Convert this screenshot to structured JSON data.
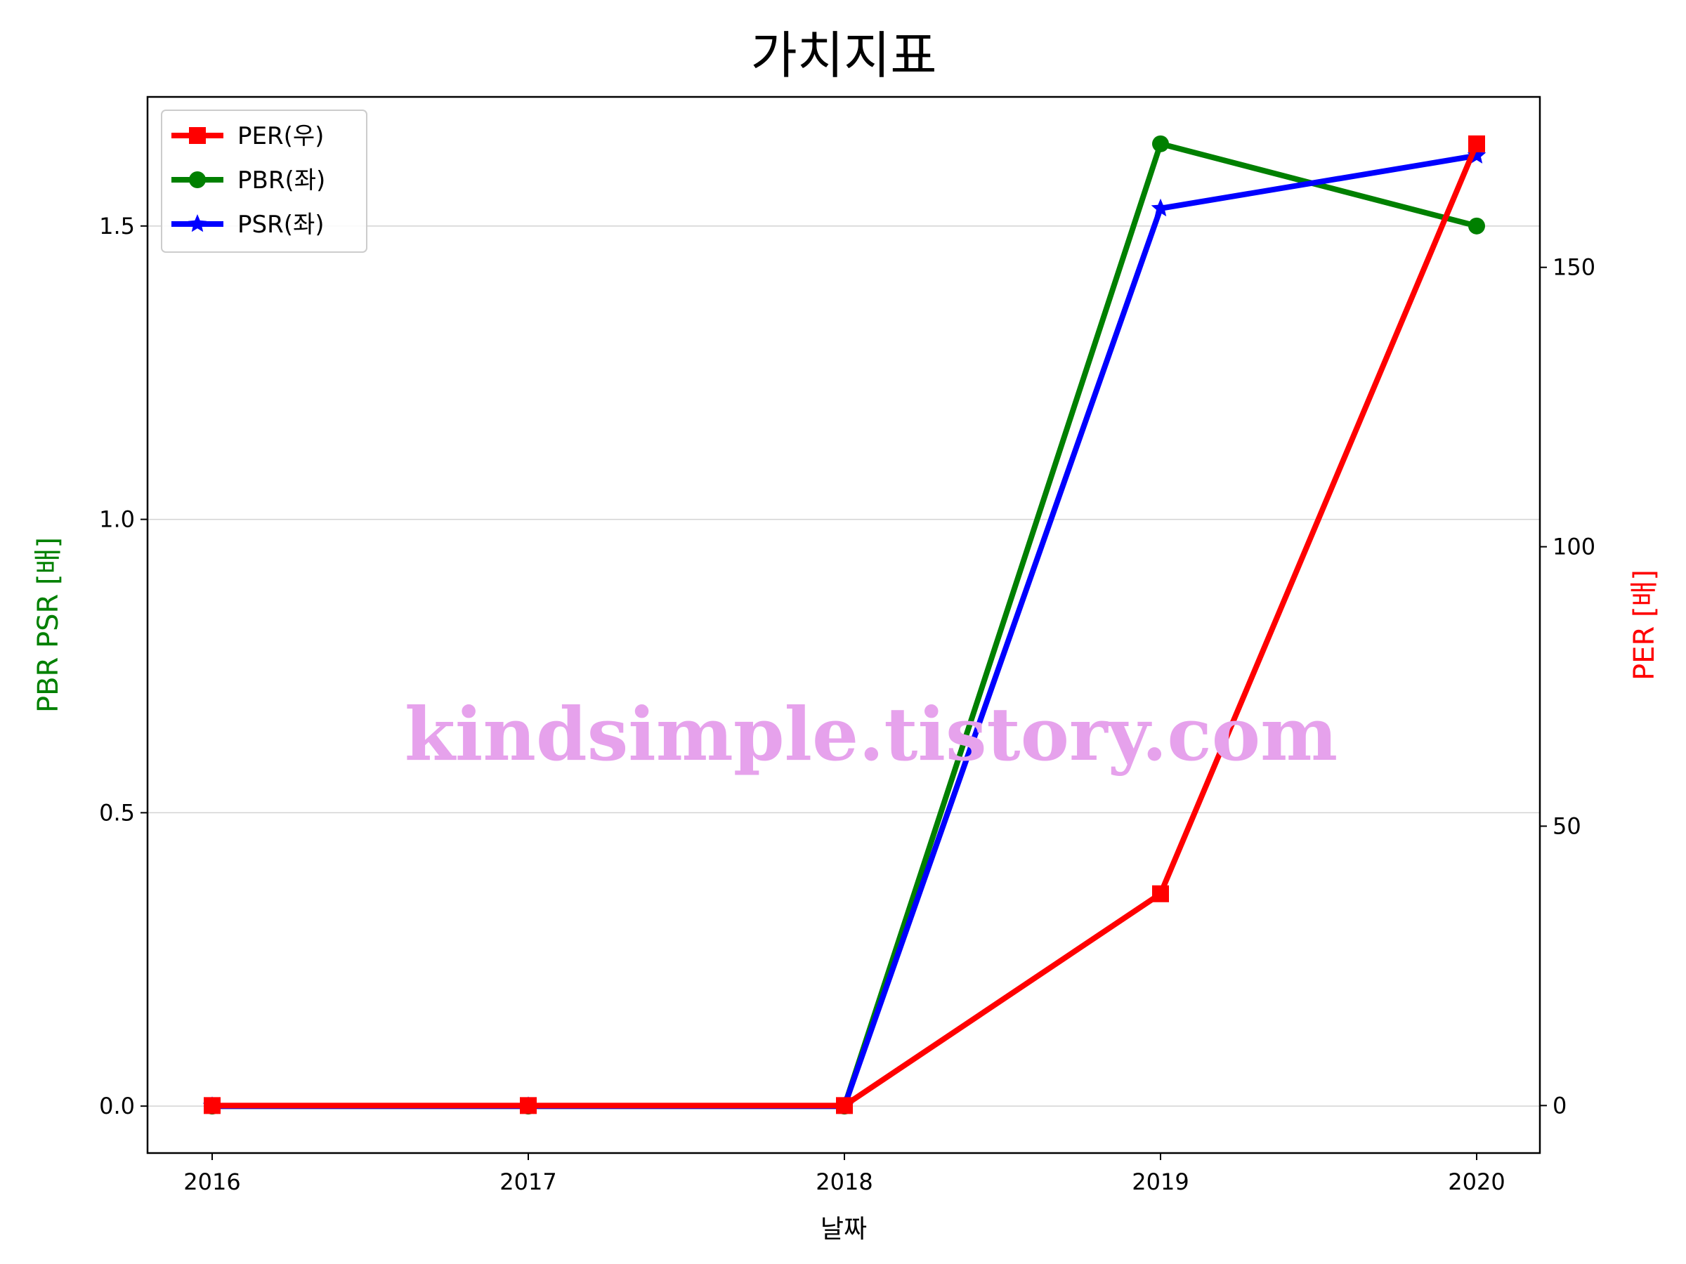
{
  "chart_data": {
    "type": "line",
    "title": "가치지표",
    "xlabel": "날짜",
    "ylabel_left": "PBR PSR [배]",
    "ylabel_right": "PER [배]",
    "x": [
      "2016",
      "2017",
      "2018",
      "2019",
      "2020"
    ],
    "ylim_left": [
      -0.08,
      1.72
    ],
    "ylim_right": [
      -8.5,
      180.5
    ],
    "yticks_left": [
      "0.0",
      "0.5",
      "1.0",
      "1.5"
    ],
    "yticks_right": [
      "0",
      "50",
      "100",
      "150"
    ],
    "grid": "horizontal (left axis)",
    "legend_position": "top-left",
    "series": [
      {
        "name": "PER(우)",
        "axis": "right",
        "color": "#ff0000",
        "marker": "square",
        "values": [
          0,
          0,
          0,
          37.9,
          172.1
        ]
      },
      {
        "name": "PBR(좌)",
        "axis": "left",
        "color": "#008000",
        "marker": "circle",
        "values": [
          0,
          0,
          0,
          1.64,
          1.5
        ]
      },
      {
        "name": "PSR(좌)",
        "axis": "left",
        "color": "#0000ff",
        "marker": "star",
        "values": [
          0,
          0,
          0,
          1.53,
          1.62
        ]
      }
    ],
    "watermark": "kindsimple.tistory.com",
    "colors": {
      "left_axis_label": "#008000",
      "right_axis_label": "#ff0000",
      "grid": "#d3d3d3"
    }
  }
}
